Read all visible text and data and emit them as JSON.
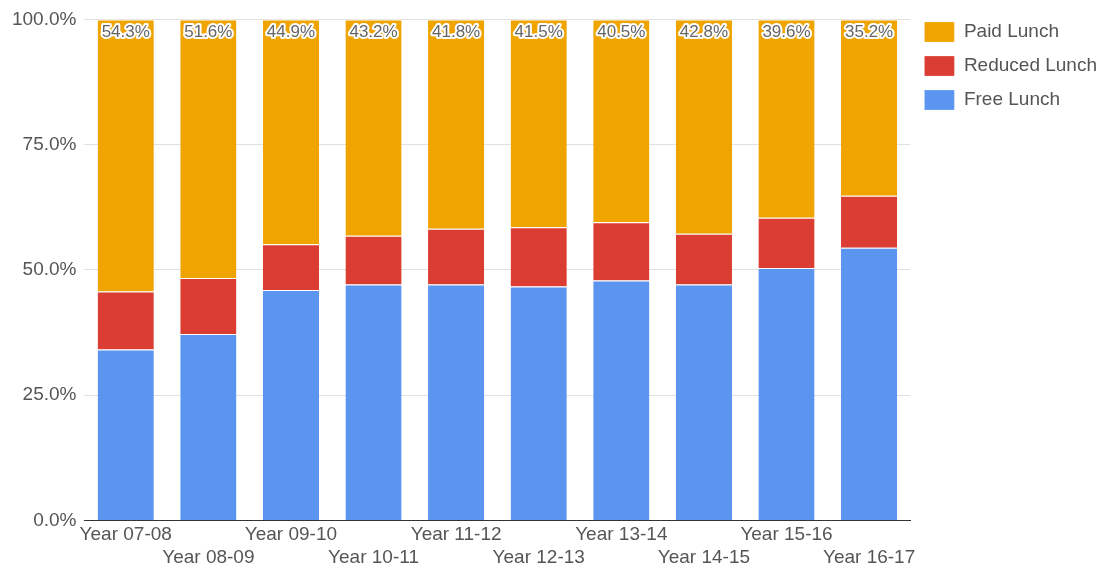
{
  "chart_data": {
    "type": "bar",
    "stacked": true,
    "categories": [
      "Year 07-08",
      "Year 08-09",
      "Year 09-10",
      "Year 10-11",
      "Year 11-12",
      "Year 12-13",
      "Year 13-14",
      "Year 14-15",
      "Year 15-16",
      "Year 16-17"
    ],
    "series": [
      {
        "name": "Free Lunch",
        "color": "#5b95f0",
        "values": [
          34.1,
          37.2,
          46.0,
          47.1,
          47.1,
          46.7,
          47.9,
          47.1,
          50.4,
          54.4
        ]
      },
      {
        "name": "Reduced Lunch",
        "color": "#db3d32",
        "values": [
          11.6,
          11.2,
          9.1,
          9.7,
          11.1,
          11.8,
          11.6,
          10.1,
          10.0,
          10.4
        ]
      },
      {
        "name": "Paid Lunch",
        "color": "#efa400",
        "values": [
          54.3,
          51.6,
          44.9,
          43.2,
          41.8,
          41.5,
          40.5,
          42.8,
          39.6,
          35.2
        ],
        "value_labels": [
          "54.3%",
          "51.6%",
          "44.9%",
          "43.2%",
          "41.8%",
          "41.5%",
          "40.5%",
          "42.8%",
          "39.6%",
          "35.2%"
        ]
      }
    ],
    "ylim": [
      0,
      100
    ],
    "yticks": [
      {
        "value": 0,
        "label": "0.0%"
      },
      {
        "value": 25,
        "label": "25.0%"
      },
      {
        "value": 50,
        "label": "50.0%"
      },
      {
        "value": 75,
        "label": "75.0%"
      },
      {
        "value": 100,
        "label": "100.0%"
      }
    ],
    "grid": "y",
    "legend": "top right"
  }
}
